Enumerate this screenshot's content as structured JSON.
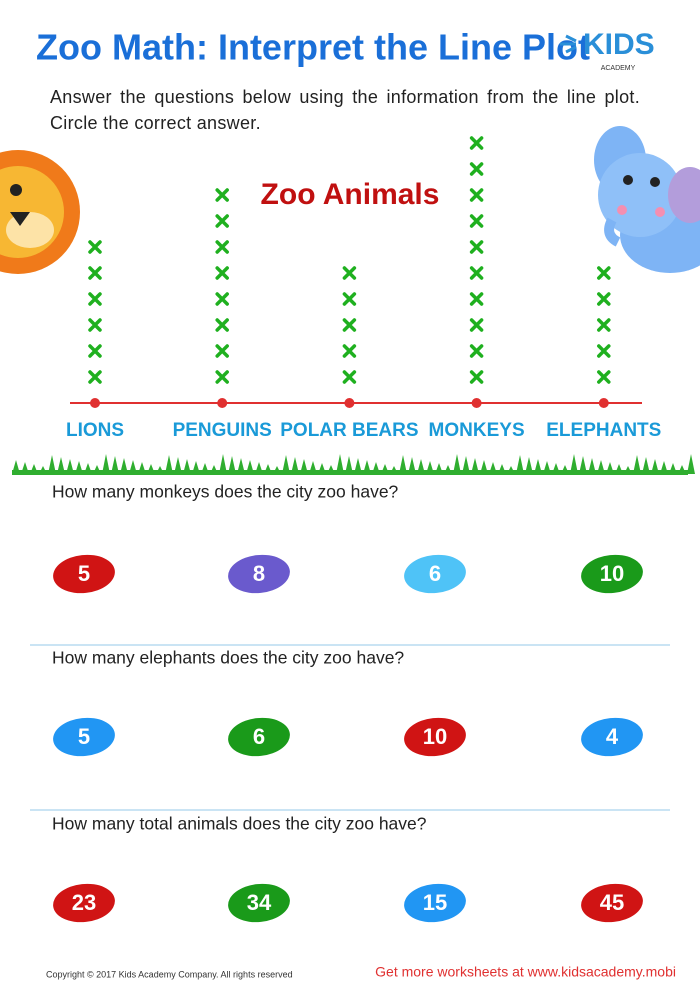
{
  "header": {
    "title": "Zoo Math: Interpret the Line Plot",
    "logo": "KIDS",
    "logo_sub": "ACADEMY"
  },
  "instructions": "Answer the questions below using the information from the line plot. Circle the correct answer.",
  "chart_data": {
    "type": "dot",
    "title": "Zoo Animals",
    "categories": [
      "LIONS",
      "PENGUINS",
      "POLAR BEARS",
      "MONKEYS",
      "ELEPHANTS"
    ],
    "values": [
      6,
      8,
      5,
      10,
      5
    ],
    "color": "#1fb01f"
  },
  "questions": [
    {
      "text": "How many monkeys does the city zoo have?",
      "options": [
        5,
        8,
        6,
        10
      ]
    },
    {
      "text": "How many elephants does the city zoo have?",
      "options": [
        5,
        6,
        10,
        4
      ]
    },
    {
      "text": "How many total animals does the city zoo have?",
      "options": [
        23,
        34,
        15,
        45
      ]
    }
  ],
  "footer": {
    "copyright": "Copyright © 2017 Kids Academy Company. All rights reserved",
    "link": "Get more worksheets at www.kidsacademy.mobi"
  }
}
